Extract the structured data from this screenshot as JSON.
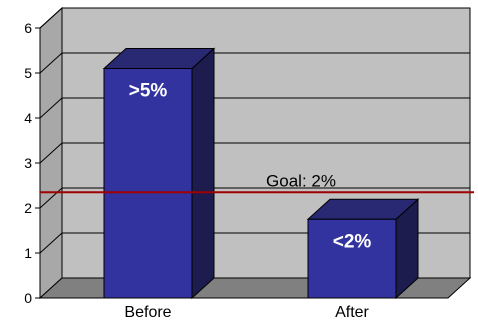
{
  "chart_data": {
    "type": "bar",
    "title": "",
    "xlabel": "",
    "ylabel": "",
    "categories": [
      "Before",
      "After"
    ],
    "values": [
      5.1,
      1.75
    ],
    "data_labels": [
      ">5%",
      "<2%"
    ],
    "yticks": [
      "0",
      "1",
      "2",
      "3",
      "4",
      "5",
      "6"
    ],
    "ylim": [
      0,
      6
    ],
    "grid": true,
    "three_d": true,
    "reference_line": {
      "label": "Goal: 2%",
      "value": 2.35,
      "color": "#a00000"
    },
    "colors": {
      "bar_front": "#3333a0",
      "bar_top": "#282873",
      "bar_side": "#1c1c4e",
      "plot_wall": "#c0c0c0",
      "floor": "#808080",
      "bar_label": "#ffffff"
    }
  }
}
